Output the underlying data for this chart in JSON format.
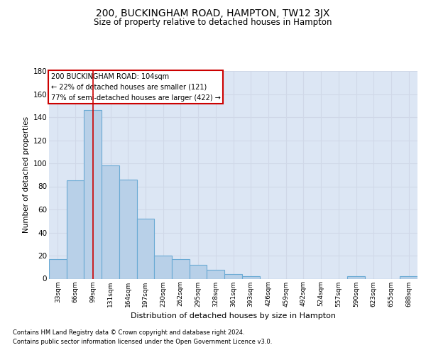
{
  "title": "200, BUCKINGHAM ROAD, HAMPTON, TW12 3JX",
  "subtitle": "Size of property relative to detached houses in Hampton",
  "xlabel": "Distribution of detached houses by size in Hampton",
  "ylabel": "Number of detached properties",
  "bar_labels": [
    "33sqm",
    "66sqm",
    "99sqm",
    "131sqm",
    "164sqm",
    "197sqm",
    "230sqm",
    "262sqm",
    "295sqm",
    "328sqm",
    "361sqm",
    "393sqm",
    "426sqm",
    "459sqm",
    "492sqm",
    "524sqm",
    "557sqm",
    "590sqm",
    "623sqm",
    "655sqm",
    "688sqm"
  ],
  "bar_values": [
    17,
    85,
    146,
    98,
    86,
    52,
    20,
    17,
    12,
    8,
    4,
    2,
    0,
    0,
    0,
    0,
    0,
    2,
    0,
    0,
    2
  ],
  "bar_color": "#b8d0e8",
  "bar_edge_color": "#6aaad4",
  "grid_color": "#d0d8e8",
  "background_color": "#dce6f4",
  "vline_x": 2,
  "vline_color": "#cc0000",
  "annotation_text": "200 BUCKINGHAM ROAD: 104sqm\n← 22% of detached houses are smaller (121)\n77% of semi-detached houses are larger (422) →",
  "annotation_box_color": "#ffffff",
  "annotation_box_edge": "#cc0000",
  "ylim": [
    0,
    180
  ],
  "yticks": [
    0,
    20,
    40,
    60,
    80,
    100,
    120,
    140,
    160,
    180
  ],
  "footer_line1": "Contains HM Land Registry data © Crown copyright and database right 2024.",
  "footer_line2": "Contains public sector information licensed under the Open Government Licence v3.0."
}
